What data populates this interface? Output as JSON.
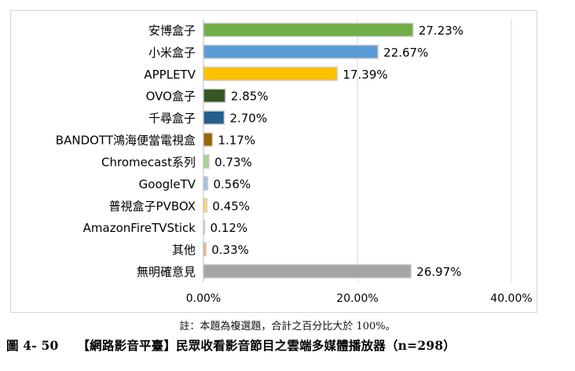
{
  "chart_data": {
    "type": "bar",
    "orientation": "horizontal",
    "categories": [
      "安博盒子",
      "小米盒子",
      "APPLETV",
      "OVO盒子",
      "千尋盒子",
      "BANDOTT鴻海便當電視盒",
      "Chromecast系列",
      "GoogleTV",
      "普視盒子PVBOX",
      "AmazonFireTVStick",
      "其他",
      "無明確意見"
    ],
    "values": [
      27.23,
      22.67,
      17.39,
      2.85,
      2.7,
      1.17,
      0.73,
      0.56,
      0.45,
      0.12,
      0.33,
      26.97
    ],
    "value_labels": [
      "27.23%",
      "22.67%",
      "17.39%",
      "2.85%",
      "2.70%",
      "1.17%",
      "0.73%",
      "0.56%",
      "0.45%",
      "0.12%",
      "0.33%",
      "26.97%"
    ],
    "colors": [
      "#70ad47",
      "#5b9bd5",
      "#ffc000",
      "#375623",
      "#255e91",
      "#9c6500",
      "#a9d18e",
      "#9dc3e6",
      "#ffd966",
      "#c9c9c9",
      "#f4b183",
      "#a5a5a5"
    ],
    "xlim": [
      0,
      40
    ],
    "x_ticks": [
      0,
      20,
      40
    ],
    "x_tick_labels": [
      "0.00%",
      "20.00%",
      "40.00%"
    ],
    "grid": true
  },
  "note": "註：本題為複選題，合計之百分比大於 100%。",
  "caption": {
    "figure_no": "圖 4- 50",
    "title": "【網路影音平臺】民眾收看影音節目之雲端多媒體播放器（n=298）"
  }
}
